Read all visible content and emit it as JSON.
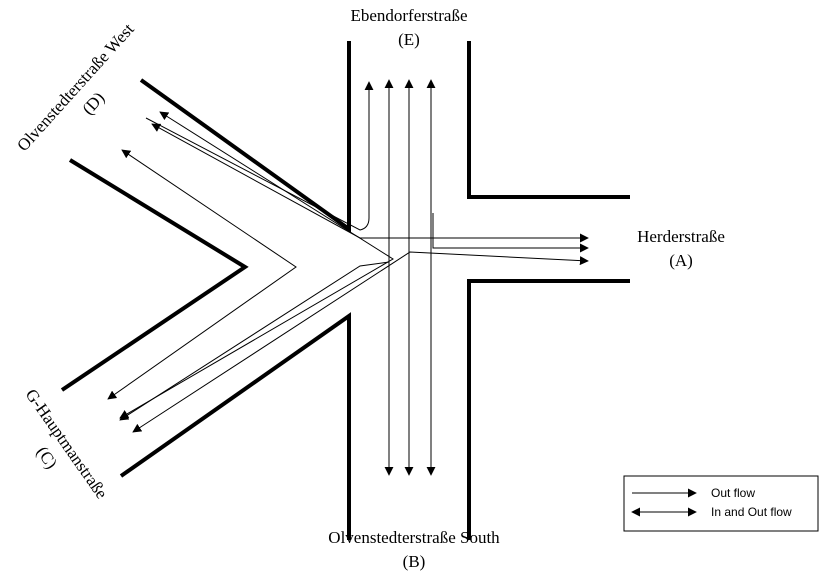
{
  "labels": {
    "north_name": "Ebendorferstraße",
    "north_code": "(E)",
    "east_name": "Herderstraße",
    "east_code": "(A)",
    "south_name": "Olvenstedterstraße South",
    "south_code": "(B)",
    "nw_name": "Olvenstedterstraße West",
    "nw_code": "(D)",
    "sw_name": "G-Hauptmanstraße",
    "sw_code": "(C)"
  },
  "legend": {
    "out_flow": "Out flow",
    "in_out_flow": "In and Out flow"
  }
}
